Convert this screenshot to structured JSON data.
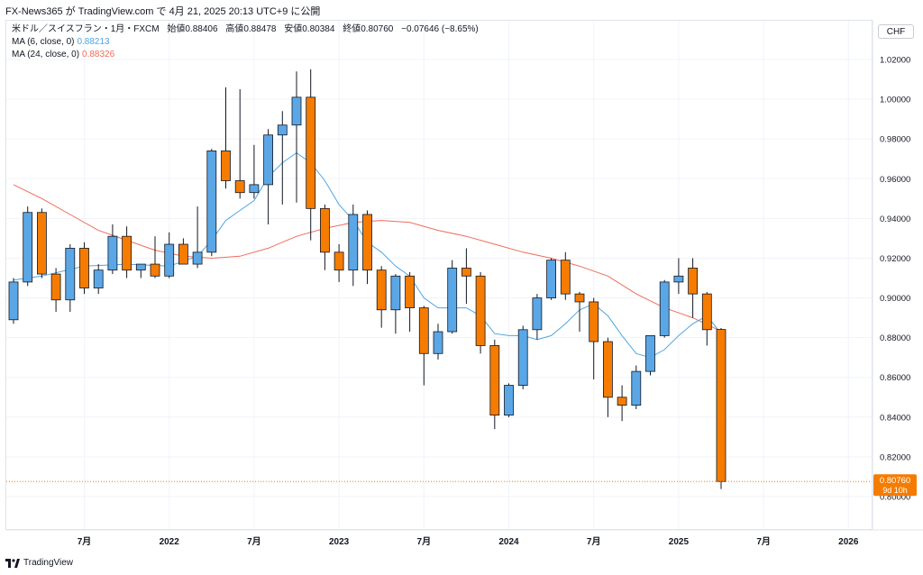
{
  "header": {
    "title": "FX-News365 が TradingView.com で 4月 21, 2025 20:13 UTC+9 に公開"
  },
  "legend": {
    "symbol": "米ドル／スイスフラン・1月・FXCM",
    "open_label": "始値",
    "open": "0.88406",
    "high_label": "高値",
    "high": "0.88478",
    "low_label": "安値",
    "low": "0.80384",
    "close_label": "終値",
    "close": "0.80760",
    "change": "−0.07646 (−8.65%)",
    "ma6_label": "MA (6, close, 0)",
    "ma6_value": "0.88213",
    "ma24_label": "MA (24, close, 0)",
    "ma24_value": "0.88326"
  },
  "currency_button": "CHF",
  "price_tag": {
    "value": "0.80760",
    "countdown": "9d 10h"
  },
  "footer": {
    "brand": "TradingView"
  },
  "colors": {
    "up": "#5ba7e6",
    "down": "#f57c00",
    "ma6": "#4ea6e0",
    "ma24": "#ef6c5a",
    "grid": "#f0f3fa",
    "last_price": "#f57c00"
  },
  "chart_data": {
    "type": "candlestick",
    "title": "米ドル／スイスフラン・1月・FXCM",
    "ylim": [
      0.79,
      1.03
    ],
    "y_ticks": [
      "1.02000",
      "1.00000",
      "0.98000",
      "0.96000",
      "0.94000",
      "0.92000",
      "0.90000",
      "0.88000",
      "0.86000",
      "0.84000",
      "0.82000",
      "0.80000"
    ],
    "x_ticks": [
      {
        "label": "7月",
        "index": 5
      },
      {
        "label": "2022",
        "index": 11
      },
      {
        "label": "7月",
        "index": 17
      },
      {
        "label": "2023",
        "index": 23
      },
      {
        "label": "7月",
        "index": 29
      },
      {
        "label": "2024",
        "index": 35
      },
      {
        "label": "7月",
        "index": 41
      },
      {
        "label": "2025",
        "index": 47
      },
      {
        "label": "7月",
        "index": 53
      },
      {
        "label": "2026",
        "index": 59
      }
    ],
    "candles": [
      {
        "o": 0.889,
        "h": 0.91,
        "l": 0.887,
        "c": 0.908
      },
      {
        "o": 0.908,
        "h": 0.946,
        "l": 0.906,
        "c": 0.943
      },
      {
        "o": 0.943,
        "h": 0.945,
        "l": 0.91,
        "c": 0.912
      },
      {
        "o": 0.912,
        "h": 0.915,
        "l": 0.893,
        "c": 0.899
      },
      {
        "o": 0.899,
        "h": 0.927,
        "l": 0.893,
        "c": 0.925
      },
      {
        "o": 0.925,
        "h": 0.928,
        "l": 0.902,
        "c": 0.905
      },
      {
        "o": 0.905,
        "h": 0.917,
        "l": 0.902,
        "c": 0.914
      },
      {
        "o": 0.914,
        "h": 0.937,
        "l": 0.912,
        "c": 0.931
      },
      {
        "o": 0.931,
        "h": 0.936,
        "l": 0.91,
        "c": 0.914
      },
      {
        "o": 0.914,
        "h": 0.917,
        "l": 0.91,
        "c": 0.917
      },
      {
        "o": 0.917,
        "h": 0.931,
        "l": 0.91,
        "c": 0.911
      },
      {
        "o": 0.911,
        "h": 0.933,
        "l": 0.91,
        "c": 0.927
      },
      {
        "o": 0.927,
        "h": 0.93,
        "l": 0.917,
        "c": 0.917
      },
      {
        "o": 0.917,
        "h": 0.946,
        "l": 0.915,
        "c": 0.923
      },
      {
        "o": 0.923,
        "h": 0.975,
        "l": 0.921,
        "c": 0.974
      },
      {
        "o": 0.974,
        "h": 1.006,
        "l": 0.955,
        "c": 0.959
      },
      {
        "o": 0.959,
        "h": 1.005,
        "l": 0.95,
        "c": 0.953
      },
      {
        "o": 0.953,
        "h": 0.977,
        "l": 0.95,
        "c": 0.957
      },
      {
        "o": 0.957,
        "h": 0.985,
        "l": 0.937,
        "c": 0.982
      },
      {
        "o": 0.982,
        "h": 0.994,
        "l": 0.947,
        "c": 0.987
      },
      {
        "o": 0.987,
        "h": 1.014,
        "l": 0.948,
        "c": 1.001
      },
      {
        "o": 1.001,
        "h": 1.015,
        "l": 0.929,
        "c": 0.945
      },
      {
        "o": 0.945,
        "h": 0.947,
        "l": 0.914,
        "c": 0.923
      },
      {
        "o": 0.923,
        "h": 0.927,
        "l": 0.908,
        "c": 0.914
      },
      {
        "o": 0.914,
        "h": 0.947,
        "l": 0.906,
        "c": 0.942
      },
      {
        "o": 0.942,
        "h": 0.944,
        "l": 0.907,
        "c": 0.914
      },
      {
        "o": 0.914,
        "h": 0.916,
        "l": 0.885,
        "c": 0.894
      },
      {
        "o": 0.894,
        "h": 0.912,
        "l": 0.882,
        "c": 0.911
      },
      {
        "o": 0.911,
        "h": 0.913,
        "l": 0.883,
        "c": 0.895
      },
      {
        "o": 0.895,
        "h": 0.896,
        "l": 0.856,
        "c": 0.872
      },
      {
        "o": 0.872,
        "h": 0.887,
        "l": 0.869,
        "c": 0.883
      },
      {
        "o": 0.883,
        "h": 0.919,
        "l": 0.882,
        "c": 0.915
      },
      {
        "o": 0.915,
        "h": 0.925,
        "l": 0.897,
        "c": 0.911
      },
      {
        "o": 0.911,
        "h": 0.913,
        "l": 0.872,
        "c": 0.876
      },
      {
        "o": 0.876,
        "h": 0.879,
        "l": 0.834,
        "c": 0.841
      },
      {
        "o": 0.841,
        "h": 0.857,
        "l": 0.84,
        "c": 0.856
      },
      {
        "o": 0.856,
        "h": 0.886,
        "l": 0.854,
        "c": 0.884
      },
      {
        "o": 0.884,
        "h": 0.902,
        "l": 0.879,
        "c": 0.9
      },
      {
        "o": 0.9,
        "h": 0.92,
        "l": 0.899,
        "c": 0.919
      },
      {
        "o": 0.919,
        "h": 0.923,
        "l": 0.899,
        "c": 0.902
      },
      {
        "o": 0.902,
        "h": 0.903,
        "l": 0.883,
        "c": 0.898
      },
      {
        "o": 0.898,
        "h": 0.9,
        "l": 0.859,
        "c": 0.878
      },
      {
        "o": 0.878,
        "h": 0.88,
        "l": 0.84,
        "c": 0.85
      },
      {
        "o": 0.85,
        "h": 0.856,
        "l": 0.838,
        "c": 0.846
      },
      {
        "o": 0.846,
        "h": 0.866,
        "l": 0.844,
        "c": 0.863
      },
      {
        "o": 0.863,
        "h": 0.881,
        "l": 0.861,
        "c": 0.881
      },
      {
        "o": 0.881,
        "h": 0.909,
        "l": 0.88,
        "c": 0.908
      },
      {
        "o": 0.908,
        "h": 0.92,
        "l": 0.902,
        "c": 0.911
      },
      {
        "o": 0.915,
        "h": 0.92,
        "l": 0.89,
        "c": 0.902
      },
      {
        "o": 0.902,
        "h": 0.903,
        "l": 0.876,
        "c": 0.884
      },
      {
        "o": 0.8841,
        "h": 0.8848,
        "l": 0.8038,
        "c": 0.8076
      }
    ],
    "ma6": [
      {
        "i": 0,
        "v": 0.909
      },
      {
        "i": 2,
        "v": 0.911
      },
      {
        "i": 5,
        "v": 0.916
      },
      {
        "i": 8,
        "v": 0.917
      },
      {
        "i": 11,
        "v": 0.916
      },
      {
        "i": 13,
        "v": 0.921
      },
      {
        "i": 14,
        "v": 0.929
      },
      {
        "i": 15,
        "v": 0.939
      },
      {
        "i": 16,
        "v": 0.944
      },
      {
        "i": 17,
        "v": 0.949
      },
      {
        "i": 18,
        "v": 0.961
      },
      {
        "i": 19,
        "v": 0.968
      },
      {
        "i": 20,
        "v": 0.973
      },
      {
        "i": 21,
        "v": 0.968
      },
      {
        "i": 22,
        "v": 0.959
      },
      {
        "i": 23,
        "v": 0.947
      },
      {
        "i": 24,
        "v": 0.939
      },
      {
        "i": 25,
        "v": 0.928
      },
      {
        "i": 26,
        "v": 0.923
      },
      {
        "i": 27,
        "v": 0.916
      },
      {
        "i": 28,
        "v": 0.911
      },
      {
        "i": 29,
        "v": 0.9
      },
      {
        "i": 30,
        "v": 0.895
      },
      {
        "i": 31,
        "v": 0.895
      },
      {
        "i": 32,
        "v": 0.895
      },
      {
        "i": 33,
        "v": 0.891
      },
      {
        "i": 34,
        "v": 0.882
      },
      {
        "i": 35,
        "v": 0.881
      },
      {
        "i": 36,
        "v": 0.881
      },
      {
        "i": 37,
        "v": 0.879
      },
      {
        "i": 38,
        "v": 0.881
      },
      {
        "i": 39,
        "v": 0.887
      },
      {
        "i": 40,
        "v": 0.894
      },
      {
        "i": 41,
        "v": 0.897
      },
      {
        "i": 42,
        "v": 0.891
      },
      {
        "i": 43,
        "v": 0.881
      },
      {
        "i": 44,
        "v": 0.872
      },
      {
        "i": 45,
        "v": 0.87
      },
      {
        "i": 46,
        "v": 0.874
      },
      {
        "i": 47,
        "v": 0.881
      },
      {
        "i": 48,
        "v": 0.887
      },
      {
        "i": 49,
        "v": 0.891
      },
      {
        "i": 50,
        "v": 0.8821
      }
    ],
    "ma24": [
      {
        "i": 0,
        "v": 0.957
      },
      {
        "i": 2,
        "v": 0.95
      },
      {
        "i": 4,
        "v": 0.942
      },
      {
        "i": 6,
        "v": 0.934
      },
      {
        "i": 8,
        "v": 0.929
      },
      {
        "i": 10,
        "v": 0.924
      },
      {
        "i": 12,
        "v": 0.921
      },
      {
        "i": 14,
        "v": 0.92
      },
      {
        "i": 16,
        "v": 0.921
      },
      {
        "i": 18,
        "v": 0.925
      },
      {
        "i": 20,
        "v": 0.931
      },
      {
        "i": 22,
        "v": 0.935
      },
      {
        "i": 24,
        "v": 0.938
      },
      {
        "i": 26,
        "v": 0.939
      },
      {
        "i": 28,
        "v": 0.938
      },
      {
        "i": 30,
        "v": 0.934
      },
      {
        "i": 32,
        "v": 0.931
      },
      {
        "i": 34,
        "v": 0.927
      },
      {
        "i": 36,
        "v": 0.923
      },
      {
        "i": 38,
        "v": 0.92
      },
      {
        "i": 40,
        "v": 0.916
      },
      {
        "i": 42,
        "v": 0.911
      },
      {
        "i": 44,
        "v": 0.902
      },
      {
        "i": 46,
        "v": 0.895
      },
      {
        "i": 48,
        "v": 0.89
      },
      {
        "i": 50,
        "v": 0.8833
      }
    ],
    "last_price": 0.8076
  }
}
